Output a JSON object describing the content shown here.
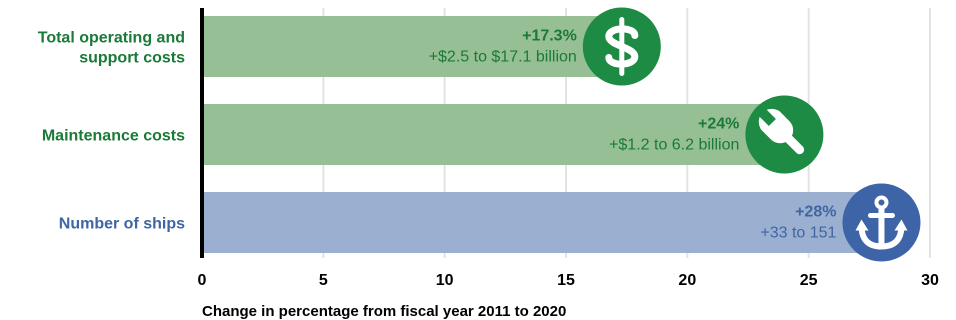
{
  "chart_data": {
    "type": "bar",
    "orientation": "horizontal",
    "categories": [
      "Total operating and support costs",
      "Maintenance costs",
      "Number of ships"
    ],
    "category_lines": [
      [
        "Total operating and",
        "support costs"
      ],
      [
        "Maintenance costs"
      ],
      [
        "Number of ships"
      ]
    ],
    "values": [
      17.3,
      24,
      28
    ],
    "annotations": [
      {
        "pct": "+17.3%",
        "detail": "+$2.5 to $17.1 billion",
        "icon": "dollar-sign-icon"
      },
      {
        "pct": "+24%",
        "detail": "+$1.2 to 6.2 billion",
        "icon": "wrench-icon"
      },
      {
        "pct": "+28%",
        "detail": "+33 to 151",
        "icon": "anchor-icon"
      }
    ],
    "xticks": [
      0,
      5,
      10,
      15,
      20,
      25,
      30
    ],
    "xlim": [
      0,
      30
    ],
    "xlabel": "Change in percentage from fiscal year 2011 to 2020",
    "grid": true,
    "colors": {
      "cost_bar": "#97bf96",
      "ships_bar": "#9bafd0",
      "cost_text": "#1a7a37",
      "ships_text": "#3f66a3",
      "cost_icon": "#1e8b44",
      "ships_icon": "#3c64a6",
      "grid": "#e3e3e3",
      "axis": "#000000"
    },
    "bar_color_keys": [
      "cost",
      "cost",
      "ships"
    ]
  }
}
